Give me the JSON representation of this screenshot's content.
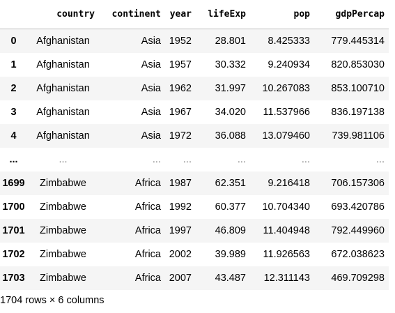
{
  "dataframe": {
    "columns": [
      "country",
      "continent",
      "year",
      "lifeExp",
      "pop",
      "gdpPercap"
    ],
    "rows": [
      {
        "index": "0",
        "cells": [
          "Afghanistan",
          "Asia",
          "1952",
          "28.801",
          "8.425333",
          "779.445314"
        ]
      },
      {
        "index": "1",
        "cells": [
          "Afghanistan",
          "Asia",
          "1957",
          "30.332",
          "9.240934",
          "820.853030"
        ]
      },
      {
        "index": "2",
        "cells": [
          "Afghanistan",
          "Asia",
          "1962",
          "31.997",
          "10.267083",
          "853.100710"
        ]
      },
      {
        "index": "3",
        "cells": [
          "Afghanistan",
          "Asia",
          "1967",
          "34.020",
          "11.537966",
          "836.197138"
        ]
      },
      {
        "index": "4",
        "cells": [
          "Afghanistan",
          "Asia",
          "1972",
          "36.088",
          "13.079460",
          "739.981106"
        ]
      },
      {
        "index": "...",
        "cells": [
          "...",
          "...",
          "...",
          "...",
          "...",
          "..."
        ]
      },
      {
        "index": "1699",
        "cells": [
          "Zimbabwe",
          "Africa",
          "1987",
          "62.351",
          "9.216418",
          "706.157306"
        ]
      },
      {
        "index": "1700",
        "cells": [
          "Zimbabwe",
          "Africa",
          "1992",
          "60.377",
          "10.704340",
          "693.420786"
        ]
      },
      {
        "index": "1701",
        "cells": [
          "Zimbabwe",
          "Africa",
          "1997",
          "46.809",
          "11.404948",
          "792.449960"
        ]
      },
      {
        "index": "1702",
        "cells": [
          "Zimbabwe",
          "Africa",
          "2002",
          "39.989",
          "11.926563",
          "672.038623"
        ]
      },
      {
        "index": "1703",
        "cells": [
          "Zimbabwe",
          "Africa",
          "2007",
          "43.487",
          "12.311143",
          "469.709298"
        ]
      }
    ],
    "shape_caption": "1704 rows × 6 columns"
  }
}
